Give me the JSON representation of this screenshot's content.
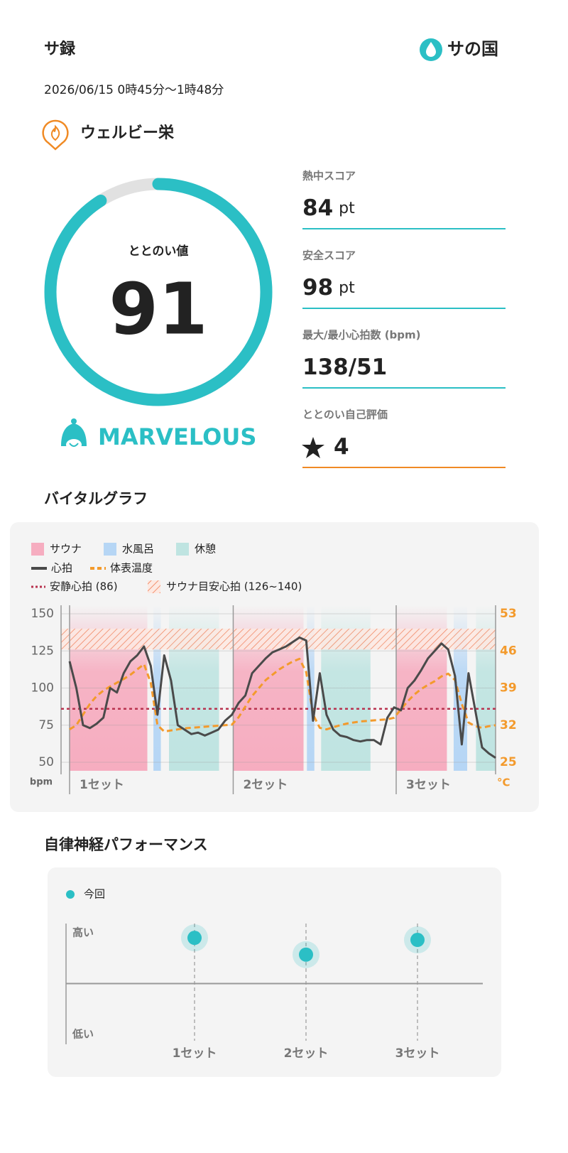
{
  "header": {
    "title": "サ録",
    "logo": "サの国",
    "datetime": "2026/06/15 0時45分〜1時48分",
    "facility": "ウェルビー栄"
  },
  "score": {
    "label": "ととのい値",
    "value": 91,
    "rank": "MARVELOUS"
  },
  "stats": [
    {
      "label": "熱中スコア",
      "value": 84,
      "unit": "pt"
    },
    {
      "label": "安全スコア",
      "value": 98,
      "unit": "pt"
    },
    {
      "label": "最大/最小心拍数 (bpm)",
      "value": "138/51"
    },
    {
      "label": "ととのい自己評価",
      "value": 4
    }
  ],
  "chart_data": [
    {
      "type": "line",
      "title": "バイタルグラフ",
      "xlim": [
        0,
        63
      ],
      "x": [
        0,
        1,
        2,
        3,
        4,
        5,
        6,
        7,
        8,
        9,
        10,
        11,
        12,
        13,
        14,
        15,
        16,
        17,
        18,
        19,
        20,
        21,
        22,
        23,
        24,
        25,
        26,
        27,
        28,
        29,
        30,
        31,
        32,
        33,
        34,
        35,
        36,
        37,
        38,
        39,
        40,
        41,
        42,
        43,
        44,
        45,
        46,
        47,
        48,
        49,
        50,
        51,
        52,
        53,
        54,
        55,
        56,
        57,
        58,
        59,
        60,
        61,
        62,
        63
      ],
      "ylim": [
        50,
        150
      ],
      "yticks": [
        50,
        75,
        100,
        125,
        150
      ],
      "y_unit": "bpm",
      "y2lim": [
        25,
        53
      ],
      "y2ticks": [
        25,
        32,
        39,
        46,
        53
      ],
      "y2_unit": "°C",
      "grid": true,
      "phase_types": [
        {
          "name": "サウナ",
          "color": "#f6adc0"
        },
        {
          "name": "水風呂",
          "color": "#b6d6f5"
        },
        {
          "name": "休憩",
          "color": "#bfe4e1"
        }
      ],
      "phases": [
        {
          "type": 0,
          "start": 0,
          "end": 11.5
        },
        {
          "type": 1,
          "start": 12.4,
          "end": 13.5
        },
        {
          "type": 2,
          "start": 14.7,
          "end": 22.1
        },
        {
          "type": 0,
          "start": 24.2,
          "end": 34.6
        },
        {
          "type": 1,
          "start": 35.1,
          "end": 36.2
        },
        {
          "type": 2,
          "start": 37.2,
          "end": 44.5
        },
        {
          "type": 0,
          "start": 48.3,
          "end": 55.8
        },
        {
          "type": 1,
          "start": 56.8,
          "end": 58.8
        },
        {
          "type": 2,
          "start": 60.1,
          "end": 63
        }
      ],
      "series": [
        {
          "name": "心拍",
          "color": "#4a4a4a",
          "values": [
            118,
            100,
            75,
            73,
            76,
            80,
            100,
            97,
            110,
            118,
            122,
            128,
            115,
            82,
            122,
            105,
            75,
            72,
            69,
            70,
            68,
            70,
            72,
            78,
            82,
            90,
            95,
            110,
            115,
            120,
            124,
            126,
            128,
            131,
            134,
            132,
            78,
            110,
            82,
            72,
            68,
            67,
            65,
            64,
            65,
            65,
            62,
            80,
            87,
            85,
            100,
            105,
            112,
            120,
            125,
            130,
            126,
            108,
            62,
            110,
            85,
            60,
            56,
            53
          ]
        },
        {
          "name": "体表温度",
          "color": "#f39a2c",
          "axis": "y2",
          "dashed": true,
          "values": [
            31.2,
            32.0,
            34.0,
            36.0,
            37.5,
            38.5,
            39.3,
            40.0,
            40.7,
            41.5,
            42.5,
            43.5,
            40.0,
            32.0,
            30.8,
            31.0,
            31.2,
            31.4,
            31.5,
            31.6,
            31.7,
            31.8,
            31.9,
            32.0,
            32.1,
            33.5,
            35.5,
            37.5,
            39.0,
            40.5,
            41.5,
            42.5,
            43.3,
            44.0,
            44.5,
            42.0,
            34.0,
            31.5,
            31.2,
            31.6,
            32.0,
            32.3,
            32.5,
            32.7,
            32.8,
            32.9,
            33.0,
            33.1,
            33.4,
            35.0,
            36.5,
            37.8,
            38.8,
            39.6,
            40.3,
            41.2,
            41.7,
            40.5,
            36.0,
            32.5,
            31.8,
            31.5,
            31.8,
            32.0
          ]
        }
      ],
      "resting_hr": {
        "label": "安静心拍 (86)",
        "value": 86,
        "color": "#b8334f"
      },
      "target_zone": {
        "label": "サウナ目安心拍 (126~140)",
        "low": 126,
        "high": 140,
        "color": "#f07a50"
      },
      "sets": [
        {
          "label": "1セット",
          "start": 0
        },
        {
          "label": "2セット",
          "start": 24.2
        },
        {
          "label": "3セット",
          "start": 48.3
        }
      ]
    },
    {
      "type": "scatter",
      "title": "自律神経パフォーマンス",
      "categories": [
        "1セット",
        "2セット",
        "3セット"
      ],
      "series": [
        {
          "name": "今回",
          "color": "#2bbfc5",
          "values": [
            0.9,
            0.57,
            0.86
          ]
        }
      ],
      "ylim": [
        -1,
        1
      ],
      "yticks": [
        {
          "value": -1,
          "label": "低い"
        },
        {
          "value": 1,
          "label": "高い"
        }
      ]
    }
  ]
}
